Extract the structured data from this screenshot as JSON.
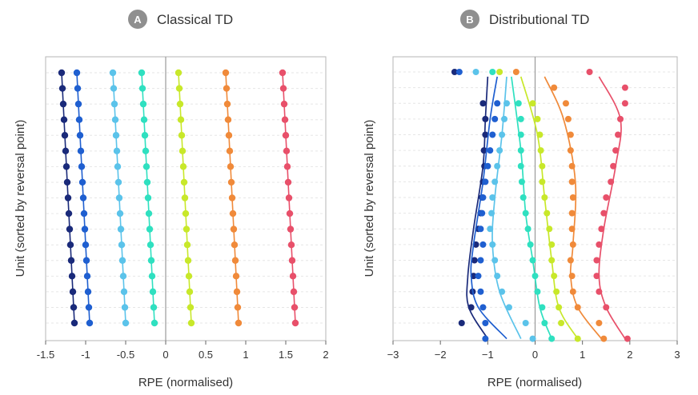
{
  "chart_data": [
    {
      "panel_badge": "A",
      "title": "Classical TD",
      "type": "scatter",
      "xlabel": "RPE (normalised)",
      "ylabel": "Unit (sorted by reversal point)",
      "xlim": [
        -1.5,
        2
      ],
      "xticks": [
        -1.5,
        -1,
        -0.5,
        0,
        0.5,
        1,
        1.5,
        2
      ],
      "xtick_labels": [
        "-1.5",
        "-1",
        "-0.5",
        "0",
        "0.5",
        "1",
        "1.5",
        "2"
      ],
      "zero_line": true,
      "n_units": 17,
      "series": [
        {
          "color": "#1a2a7a",
          "values": [
            -1.3,
            -1.29,
            -1.28,
            -1.27,
            -1.26,
            -1.25,
            -1.24,
            -1.23,
            -1.22,
            -1.21,
            -1.2,
            -1.19,
            -1.18,
            -1.17,
            -1.16,
            -1.15,
            -1.14
          ]
        },
        {
          "color": "#1f5fd0",
          "values": [
            -1.11,
            -1.1,
            -1.09,
            -1.08,
            -1.07,
            -1.06,
            -1.05,
            -1.04,
            -1.03,
            -1.02,
            -1.01,
            -1.0,
            -0.99,
            -0.98,
            -0.97,
            -0.96,
            -0.95
          ]
        },
        {
          "color": "#5bc3ea",
          "values": [
            -0.66,
            -0.65,
            -0.64,
            -0.63,
            -0.62,
            -0.61,
            -0.6,
            -0.59,
            -0.58,
            -0.57,
            -0.56,
            -0.55,
            -0.54,
            -0.53,
            -0.52,
            -0.51,
            -0.5
          ]
        },
        {
          "color": "#2fe0c0",
          "values": [
            -0.3,
            -0.29,
            -0.28,
            -0.27,
            -0.26,
            -0.25,
            -0.24,
            -0.23,
            -0.22,
            -0.21,
            -0.2,
            -0.19,
            -0.18,
            -0.17,
            -0.16,
            -0.15,
            -0.14
          ]
        },
        {
          "color": "#c8e82a",
          "values": [
            0.16,
            0.17,
            0.18,
            0.19,
            0.2,
            0.21,
            0.22,
            0.23,
            0.24,
            0.25,
            0.26,
            0.27,
            0.28,
            0.29,
            0.3,
            0.31,
            0.32
          ]
        },
        {
          "color": "#f08a3a",
          "values": [
            0.75,
            0.76,
            0.77,
            0.78,
            0.79,
            0.8,
            0.81,
            0.82,
            0.83,
            0.84,
            0.85,
            0.86,
            0.87,
            0.88,
            0.89,
            0.9,
            0.91
          ]
        },
        {
          "color": "#e8506a",
          "values": [
            1.46,
            1.47,
            1.48,
            1.49,
            1.5,
            1.51,
            1.52,
            1.53,
            1.54,
            1.55,
            1.56,
            1.57,
            1.58,
            1.59,
            1.6,
            1.61,
            1.62
          ]
        }
      ]
    },
    {
      "panel_badge": "B",
      "title": "Distributional TD",
      "type": "scatter",
      "xlabel": "RPE (normalised)",
      "ylabel": "Unit (sorted by reversal point)",
      "xlim": [
        -3,
        3
      ],
      "xticks": [
        -3,
        -2,
        -1,
        0,
        1,
        2,
        3
      ],
      "xtick_labels": [
        "−3",
        "−2",
        "−1",
        "0",
        "1",
        "2",
        "3"
      ],
      "zero_line": true,
      "n_units": 17,
      "series": [
        {
          "color": "#1a2a7a",
          "points": [
            [
              -1.7,
              0
            ],
            [
              -1.1,
              2
            ],
            [
              -1.05,
              3
            ],
            [
              -1.05,
              4
            ],
            [
              -1.08,
              5
            ],
            [
              -1.07,
              6
            ],
            [
              -1.1,
              7
            ],
            [
              -1.12,
              8
            ],
            [
              -1.15,
              9
            ],
            [
              -1.2,
              10
            ],
            [
              -1.25,
              11
            ],
            [
              -1.28,
              12
            ],
            [
              -1.3,
              13
            ],
            [
              -1.32,
              14
            ],
            [
              -1.35,
              15
            ],
            [
              -1.55,
              16
            ]
          ],
          "curve": [
            [
              -1.0,
              0.3
            ],
            [
              -1.05,
              3
            ],
            [
              -1.1,
              6
            ],
            [
              -1.3,
              10
            ],
            [
              -1.42,
              13
            ],
            [
              -1.4,
              15
            ],
            [
              -1.0,
              17
            ]
          ]
        },
        {
          "color": "#1f5fd0",
          "points": [
            [
              -1.6,
              0
            ],
            [
              -0.8,
              2
            ],
            [
              -0.85,
              3
            ],
            [
              -0.9,
              4
            ],
            [
              -0.95,
              5
            ],
            [
              -1.0,
              6
            ],
            [
              -1.05,
              7
            ],
            [
              -1.1,
              8
            ],
            [
              -1.12,
              9
            ],
            [
              -1.15,
              10
            ],
            [
              -1.1,
              11
            ],
            [
              -1.15,
              12
            ],
            [
              -1.2,
              13
            ],
            [
              -1.15,
              14
            ],
            [
              -1.1,
              15
            ],
            [
              -1.05,
              16
            ],
            [
              -1.05,
              17
            ]
          ],
          "curve": [
            [
              -0.8,
              0.3
            ],
            [
              -0.95,
              3
            ],
            [
              -1.1,
              7
            ],
            [
              -1.3,
              11
            ],
            [
              -1.35,
              13
            ],
            [
              -1.2,
              15
            ],
            [
              -0.6,
              17
            ]
          ]
        },
        {
          "color": "#5bc3ea",
          "points": [
            [
              -1.25,
              0
            ],
            [
              -0.6,
              2
            ],
            [
              -0.65,
              3
            ],
            [
              -0.7,
              4
            ],
            [
              -0.75,
              5
            ],
            [
              -0.8,
              6
            ],
            [
              -0.85,
              7
            ],
            [
              -0.9,
              8
            ],
            [
              -0.92,
              9
            ],
            [
              -0.95,
              10
            ],
            [
              -0.9,
              11
            ],
            [
              -0.85,
              12
            ],
            [
              -0.8,
              13
            ],
            [
              -0.7,
              14
            ],
            [
              -0.55,
              15
            ],
            [
              -0.2,
              16
            ],
            [
              -0.05,
              17
            ]
          ],
          "curve": [
            [
              -0.6,
              0.3
            ],
            [
              -0.7,
              4
            ],
            [
              -0.85,
              8
            ],
            [
              -0.9,
              11
            ],
            [
              -0.75,
              14
            ],
            [
              -0.3,
              17
            ]
          ]
        },
        {
          "color": "#2fe0c0",
          "points": [
            [
              -0.9,
              0
            ],
            [
              -0.35,
              2
            ],
            [
              -0.3,
              3
            ],
            [
              -0.3,
              4
            ],
            [
              -0.3,
              5
            ],
            [
              -0.3,
              6
            ],
            [
              -0.28,
              7
            ],
            [
              -0.25,
              8
            ],
            [
              -0.2,
              9
            ],
            [
              -0.15,
              10
            ],
            [
              -0.1,
              11
            ],
            [
              -0.05,
              12
            ],
            [
              0.0,
              13
            ],
            [
              0.05,
              14
            ],
            [
              0.15,
              15
            ],
            [
              0.2,
              16
            ],
            [
              0.35,
              17
            ]
          ],
          "curve": [
            [
              -0.5,
              0.3
            ],
            [
              -0.3,
              5
            ],
            [
              -0.2,
              9
            ],
            [
              -0.05,
              12
            ],
            [
              0.1,
              15
            ],
            [
              0.35,
              17
            ]
          ]
        },
        {
          "color": "#c8e82a",
          "points": [
            [
              -0.75,
              0
            ],
            [
              -0.05,
              2
            ],
            [
              0.05,
              3
            ],
            [
              0.1,
              4
            ],
            [
              0.12,
              5
            ],
            [
              0.15,
              6
            ],
            [
              0.15,
              7
            ],
            [
              0.2,
              8
            ],
            [
              0.25,
              9
            ],
            [
              0.3,
              10
            ],
            [
              0.35,
              11
            ],
            [
              0.35,
              12
            ],
            [
              0.4,
              13
            ],
            [
              0.45,
              14
            ],
            [
              0.5,
              15
            ],
            [
              0.55,
              16
            ],
            [
              0.9,
              17
            ]
          ],
          "curve": [
            [
              -0.3,
              0.3
            ],
            [
              0.05,
              4
            ],
            [
              0.2,
              8
            ],
            [
              0.35,
              12
            ],
            [
              0.5,
              15
            ],
            [
              0.9,
              17
            ]
          ]
        },
        {
          "color": "#f08a3a",
          "points": [
            [
              -0.4,
              0
            ],
            [
              0.4,
              1
            ],
            [
              0.65,
              2
            ],
            [
              0.7,
              3
            ],
            [
              0.75,
              4
            ],
            [
              0.75,
              5
            ],
            [
              0.78,
              6
            ],
            [
              0.78,
              7
            ],
            [
              0.8,
              8
            ],
            [
              0.78,
              9
            ],
            [
              0.78,
              10
            ],
            [
              0.8,
              11
            ],
            [
              0.75,
              12
            ],
            [
              0.78,
              13
            ],
            [
              0.8,
              14
            ],
            [
              0.9,
              15
            ],
            [
              1.35,
              16
            ],
            [
              1.45,
              17
            ]
          ],
          "curve": [
            [
              0.2,
              0.3
            ],
            [
              0.6,
              3
            ],
            [
              0.85,
              7
            ],
            [
              0.8,
              11
            ],
            [
              0.75,
              13
            ],
            [
              0.9,
              15
            ],
            [
              1.4,
              17
            ]
          ]
        },
        {
          "color": "#e8506a",
          "points": [
            [
              1.15,
              0
            ],
            [
              1.9,
              1
            ],
            [
              1.9,
              2
            ],
            [
              1.8,
              3
            ],
            [
              1.75,
              4
            ],
            [
              1.7,
              5
            ],
            [
              1.65,
              6
            ],
            [
              1.6,
              7
            ],
            [
              1.5,
              8
            ],
            [
              1.45,
              9
            ],
            [
              1.4,
              10
            ],
            [
              1.35,
              11
            ],
            [
              1.3,
              12
            ],
            [
              1.3,
              13
            ],
            [
              1.35,
              14
            ],
            [
              1.5,
              15
            ],
            [
              1.95,
              17
            ]
          ],
          "curve": [
            [
              1.35,
              0.3
            ],
            [
              1.8,
              3
            ],
            [
              1.7,
              6
            ],
            [
              1.45,
              10
            ],
            [
              1.35,
              13
            ],
            [
              1.5,
              15
            ],
            [
              1.9,
              17
            ]
          ]
        }
      ]
    }
  ]
}
